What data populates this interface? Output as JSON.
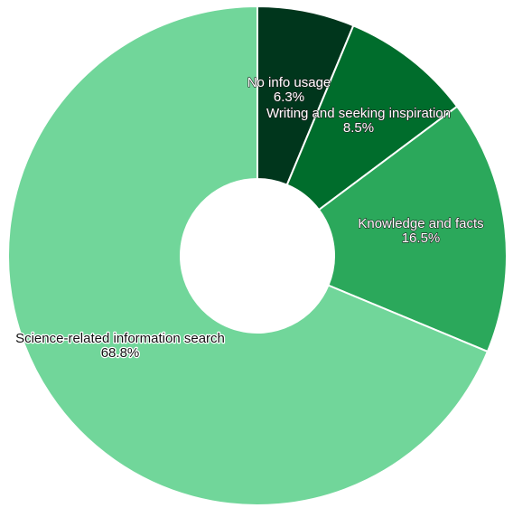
{
  "chart_data": {
    "type": "pie",
    "donut": true,
    "categories": [
      "No info usage",
      "Writing and seeking inspiration",
      "Knowledge and facts",
      "Science-related information search"
    ],
    "values": [
      6.3,
      8.5,
      16.5,
      68.8
    ],
    "value_labels": [
      "6.3%",
      "8.5%",
      "16.5%",
      "68.8%"
    ],
    "colors": [
      "#00361c",
      "#006d2c",
      "#2ba85b",
      "#71d69a"
    ],
    "start": "top, clockwise"
  }
}
